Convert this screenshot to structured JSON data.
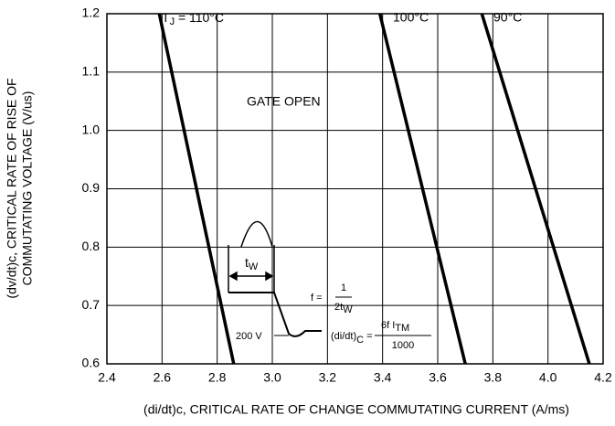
{
  "chart_data": {
    "type": "line",
    "x_label": "(di/dt)c, CRITICAL RATE OF CHANGE COMMUTATING CURRENT (A/ms)",
    "y_label": [
      "(dv/dt)c, CRITICAL RATE OF RISE OF",
      "COMMUTATING VOLTAGE (V/us)"
    ],
    "xlim": [
      2.4,
      4.2
    ],
    "ylim": [
      0.6,
      1.2
    ],
    "xticks": [
      2.4,
      2.6,
      2.8,
      {
        "value": 3.0,
        "label": "3.0"
      },
      3.2,
      3.4,
      3.6,
      3.8,
      {
        "value": 4.0,
        "label": "4.0"
      },
      4.2
    ],
    "yticks": [
      0.6,
      0.7,
      0.8,
      0.9,
      {
        "value": 1.0,
        "label": "1.0"
      },
      1.1,
      1.2
    ],
    "grid": true,
    "series": [
      {
        "name": [
          "T",
          "J",
          " = 110°C"
        ],
        "color": "#000000",
        "x": [
          2.59,
          2.86
        ],
        "values": [
          1.2,
          0.6
        ]
      },
      {
        "name": "100°C",
        "color": "#000000",
        "x": [
          3.39,
          3.7
        ],
        "values": [
          1.2,
          0.6
        ]
      },
      {
        "name": "90°C",
        "color": "#000000",
        "x": [
          3.76,
          4.15
        ],
        "values": [
          1.2,
          0.6
        ]
      }
    ],
    "annotation": "GATE OPEN",
    "inset": {
      "tw": [
        "t",
        "W"
      ],
      "f_eq": "f =",
      "f_num": "1",
      "f_den": [
        "2t",
        "W"
      ],
      "voltage": "200 V",
      "didt": [
        "(di/dt)",
        "C",
        " ="
      ],
      "didt_num": [
        "6f I",
        "TM"
      ],
      "didt_den": "1000"
    }
  }
}
